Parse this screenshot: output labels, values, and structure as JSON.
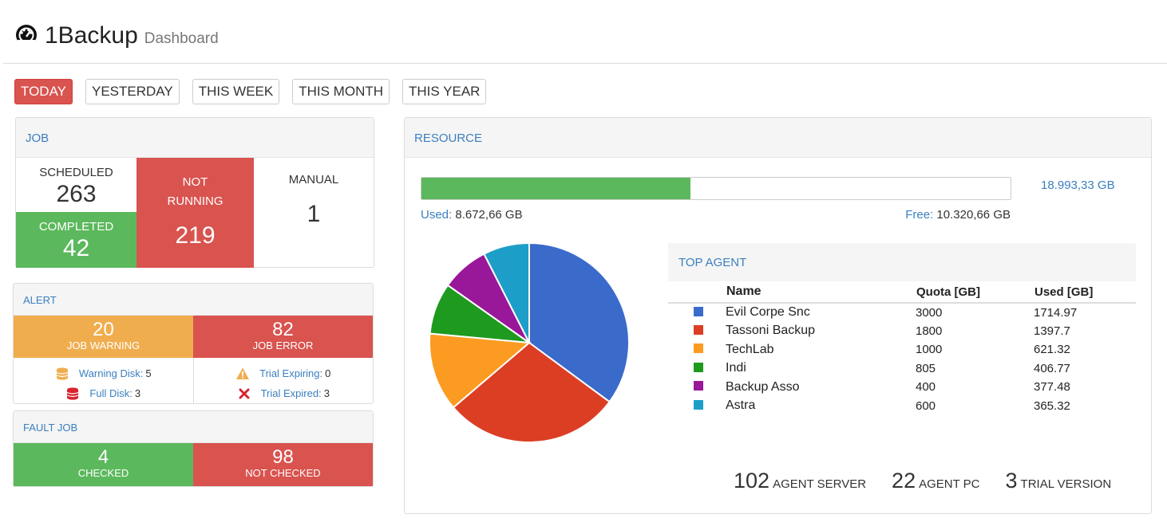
{
  "header": {
    "title": "1Backup",
    "subtitle": "Dashboard",
    "logo_icon": "dashboard-gauge-icon"
  },
  "ranges": [
    {
      "label": "TODAY",
      "active": true
    },
    {
      "label": "YESTERDAY",
      "active": false
    },
    {
      "label": "THIS WEEK",
      "active": false
    },
    {
      "label": "THIS MONTH",
      "active": false
    },
    {
      "label": "THIS YEAR",
      "active": false
    }
  ],
  "job": {
    "title": "JOB",
    "scheduled": {
      "label": "SCHEDULED",
      "value": "263"
    },
    "completed": {
      "label": "COMPLETED",
      "value": "42"
    },
    "not_running": {
      "label_1": "NOT",
      "label_2": "RUNNING",
      "value": "219"
    },
    "manual": {
      "label": "MANUAL",
      "value": "1"
    }
  },
  "alert": {
    "title": "ALERT",
    "job_warning": {
      "value": "20",
      "label": "JOB WARNING"
    },
    "job_error": {
      "value": "82",
      "label": "JOB ERROR"
    },
    "warning_disk": {
      "label": "Warning Disk:",
      "value": "5"
    },
    "full_disk": {
      "label": "Full Disk:",
      "value": "3"
    },
    "trial_expiring": {
      "label": "Trial Expiring:",
      "value": "0"
    },
    "trial_expired": {
      "label": "Trial Expired:",
      "value": "3"
    }
  },
  "fault": {
    "title": "FAULT JOB",
    "checked": {
      "value": "4",
      "label": "CHECKED"
    },
    "not_checked": {
      "value": "98",
      "label": "NOT CHECKED"
    }
  },
  "resource": {
    "title": "RESOURCE",
    "total": "18.993,33 GB",
    "used_label": "Used:",
    "used_value": "8.672,66 GB",
    "free_label": "Free:",
    "free_value": "10.320,66 GB",
    "used_fraction": 0.4566
  },
  "top_agent": {
    "title": "TOP AGENT",
    "columns": [
      "Name",
      "Quota [GB]",
      "Used [GB]"
    ],
    "rows": [
      {
        "name": "Evil Corpe Snc",
        "quota": "3000",
        "used": "1714.97",
        "color": "#3a6bcb"
      },
      {
        "name": "Tassoni Backup",
        "quota": "1800",
        "used": "1397.7",
        "color": "#dc3e24"
      },
      {
        "name": "TechLab",
        "quota": "1000",
        "used": "621.32",
        "color": "#fb9b21"
      },
      {
        "name": "Indi",
        "quota": "805",
        "used": "406.77",
        "color": "#1e9a1e"
      },
      {
        "name": "Backup Asso",
        "quota": "400",
        "used": "377.48",
        "color": "#991799"
      },
      {
        "name": "Astra",
        "quota": "600",
        "used": "365.32",
        "color": "#1d9ec8"
      }
    ]
  },
  "counts": [
    {
      "value": "102",
      "label": "AGENT SERVER"
    },
    {
      "value": "22",
      "label": "AGENT PC"
    },
    {
      "value": "3",
      "label": "TRIAL VERSION"
    }
  ]
}
